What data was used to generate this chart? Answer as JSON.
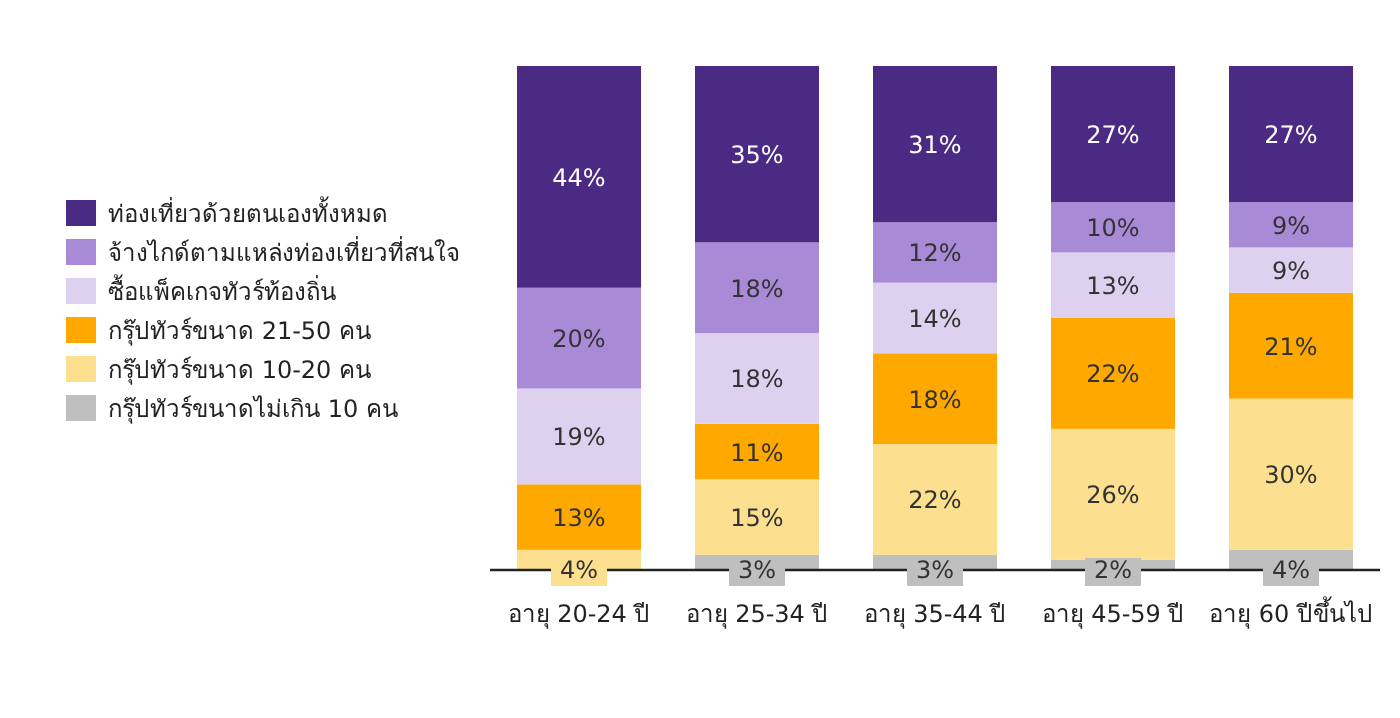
{
  "chart_data": {
    "type": "bar",
    "stacked": true,
    "legend": "left",
    "categories": [
      "อายุ 20-24 ปี",
      "อายุ 25-34 ปี",
      "อายุ 35-44 ปี",
      "อายุ 45-59 ปี",
      "อายุ 60 ปีขึ้นไป"
    ],
    "series": [
      {
        "name": "กรุ๊ปทัวร์ขนาดไม่เกิน 10 คน",
        "color": "#bfbfbf",
        "values": [
          null,
          3,
          3,
          2,
          4
        ],
        "value_labels": [
          null,
          "3%",
          "3%",
          "2%",
          "4%"
        ]
      },
      {
        "name": "กรุ๊ปทัวร์ขนาด 10-20 คน",
        "color": "#fde08f",
        "values": [
          4,
          15,
          22,
          26,
          30
        ],
        "value_labels": [
          "4%",
          "15%",
          "22%",
          "26%",
          "30%"
        ]
      },
      {
        "name": "กรุ๊ปทัวร์ขนาด 21-50 คน",
        "color": "#ffa800",
        "values": [
          13,
          11,
          18,
          22,
          21
        ],
        "value_labels": [
          "13%",
          "11%",
          "18%",
          "22%",
          "21%"
        ]
      },
      {
        "name": "ซื้อแพ็คเกจทัวร์ท้องถิ่น",
        "color": "#ddd1ef",
        "values": [
          19,
          18,
          14,
          13,
          9
        ],
        "value_labels": [
          "19%",
          "18%",
          "14%",
          "13%",
          "9%"
        ]
      },
      {
        "name": "จ้างไกด์ตามแหล่งท่องเที่ยวที่สนใจ",
        "color": "#a98ad6",
        "values": [
          20,
          18,
          12,
          10,
          9
        ],
        "value_labels": [
          "20%",
          "18%",
          "12%",
          "10%",
          "9%"
        ]
      },
      {
        "name": "ท่องเที่ยวด้วยตนเองทั้งหมด",
        "color": "#4b2a84",
        "values": [
          44,
          35,
          31,
          27,
          27
        ],
        "value_labels": [
          "44%",
          "35%",
          "31%",
          "27%",
          "27%"
        ]
      }
    ]
  }
}
